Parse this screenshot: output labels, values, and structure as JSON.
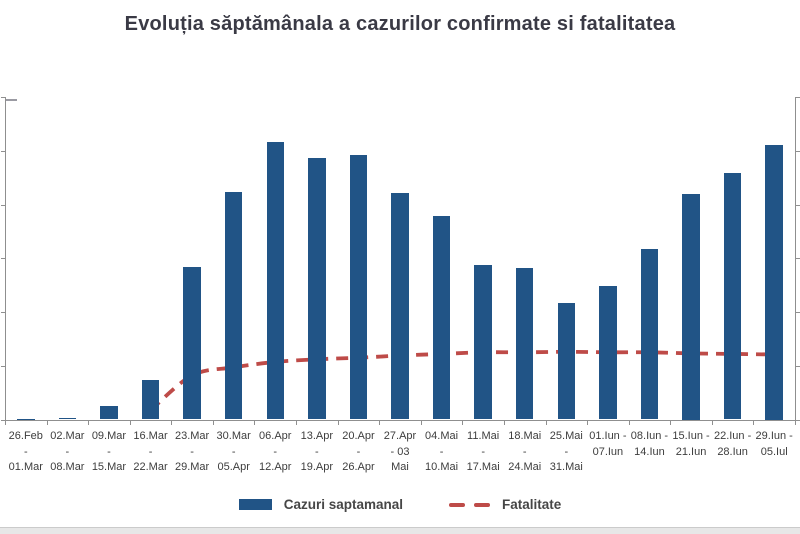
{
  "title": "Evoluția săptămânala a cazurilor confirmate si fatalitatea",
  "legend": {
    "cases_label": "Cazuri saptamanal",
    "fatality_label": "Fatalitate"
  },
  "colors": {
    "bars": "#215486",
    "fatality_line": "#be4b48",
    "axis": "#8f8f8f",
    "title_text": "#3a3a45",
    "tick_label_text": "#3d3d3d"
  },
  "chart_data": {
    "type": "bar",
    "combo_with_line": true,
    "title": "Evoluția săptămânala a cazurilor confirmate si fatalitatea",
    "categories": [
      "26.Feb - 01.Mar",
      "02.Mar - 08.Mar",
      "09.Mar - 15.Mar",
      "16.Mar - 22.Mar",
      "23.Mar - 29.Mar",
      "30.Mar - 05.Apr",
      "06.Apr - 12.Apr",
      "13.Apr - 19.Apr",
      "20.Apr - 26.Apr",
      "27.Apr - 03 Mai",
      "04.Mai - 10.Mai",
      "11.Mai - 17.Mai",
      "18.Mai - 24.Mai",
      "25.Mai - 31.Mai",
      "01.Iun - 07.Iun",
      "08.Iun - 14.Iun",
      "15.Iun - 21.Iun",
      "22.Iun - 28.Iun",
      "29.Iun - 05.Iul"
    ],
    "category_label_lines": [
      [
        "26.Feb",
        "-",
        "01.Mar"
      ],
      [
        "02.Mar",
        "-",
        "08.Mar"
      ],
      [
        "09.Mar",
        "-",
        "15.Mar"
      ],
      [
        "16.Mar",
        "-",
        "22.Mar"
      ],
      [
        "23.Mar",
        "-",
        "29.Mar"
      ],
      [
        "30.Mar",
        "-",
        "05.Apr"
      ],
      [
        "06.Apr",
        "-",
        "12.Apr"
      ],
      [
        "13.Apr",
        "-",
        "19.Apr"
      ],
      [
        "20.Apr",
        "-",
        "26.Apr"
      ],
      [
        "27.Apr",
        "- 03",
        "Mai"
      ],
      [
        "04.Mai",
        "-",
        "10.Mai"
      ],
      [
        "11.Mai",
        "-",
        "17.Mai"
      ],
      [
        "18.Mai",
        "-",
        "24.Mai"
      ],
      [
        "25.Mai",
        "-",
        "31.Mai"
      ],
      [
        "01.Iun -",
        "07.Iun"
      ],
      [
        "08.Iun -",
        "14.Iun"
      ],
      [
        "15.Iun -",
        "21.Iun"
      ],
      [
        "22.Iun -",
        "28.Iun"
      ],
      [
        "29.Iun -",
        "05.Iul"
      ]
    ],
    "series": [
      {
        "name": "Cazuri saptamanal",
        "type": "bar",
        "color": "#215486",
        "values": [
          0.01,
          0.03,
          0.26,
          0.73,
          2.84,
          4.23,
          5.16,
          4.86,
          4.93,
          4.22,
          3.78,
          2.88,
          2.82,
          2.16,
          2.49,
          3.18,
          4.2,
          4.58,
          5.1
        ]
      },
      {
        "name": "Fatalitate",
        "type": "line",
        "style": "dashed",
        "color": "#be4b48",
        "values": [
          null,
          null,
          null,
          0.17,
          0.82,
          0.97,
          1.07,
          1.12,
          1.15,
          1.19,
          1.22,
          1.25,
          1.25,
          1.26,
          1.25,
          1.25,
          1.23,
          1.22,
          1.21
        ]
      }
    ],
    "xlabel": "",
    "ylabel": "",
    "ylim": [
      0,
      6
    ],
    "y_ticks_count": 7,
    "y_axis_note": "y-axis value labels are cropped out of the screenshot; values are expressed in gridline units (6 equal divisions from baseline to top tick)",
    "grid": false,
    "legend_position": "bottom"
  }
}
